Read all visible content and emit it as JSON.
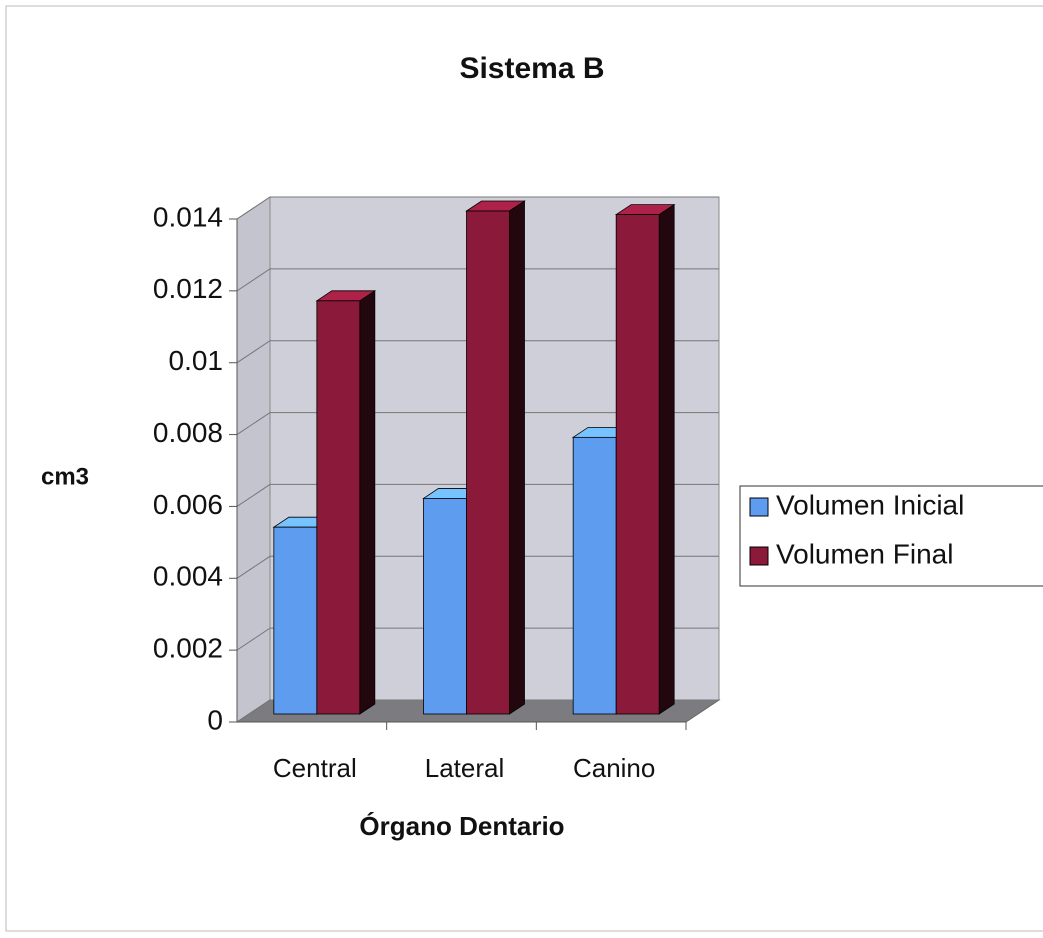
{
  "chart_data": {
    "type": "bar3d",
    "title": "Sistema B",
    "x_label": "Órgano Dentario",
    "y_label": "cm3",
    "categories": [
      "Central",
      "Lateral",
      "Canino"
    ],
    "series": [
      {
        "name": "Volumen Inicial",
        "color": "#5e9cf0",
        "values": [
          0.0052,
          0.006,
          0.0077
        ]
      },
      {
        "name": "Volumen Final",
        "color": "#8b1a3a",
        "values": [
          0.0115,
          0.014,
          0.0139
        ]
      }
    ],
    "ylim": [
      0,
      0.014
    ],
    "yticks": [
      0,
      0.002,
      0.004,
      0.006,
      0.008,
      0.01,
      0.012,
      0.014
    ],
    "grid": true,
    "legend": "right"
  }
}
